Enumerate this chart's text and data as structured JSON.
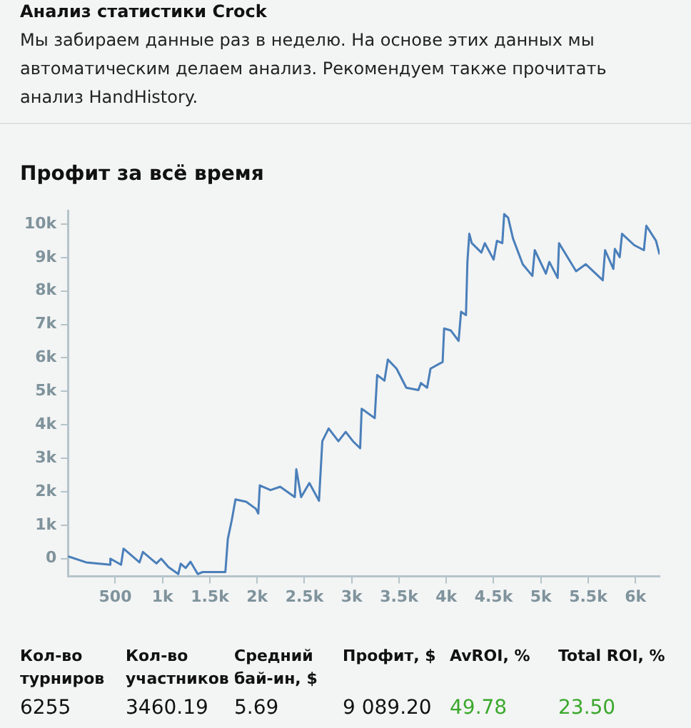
{
  "chart_data": {
    "type": "line",
    "title": "Профит за всё время",
    "annotations": [
      "Анализ статистики Crock",
      "Мы забираем данные раз в неделю. На основе этих данных мы автоматическим делаем анализ. Рекомендуем также прочитать анализ HandHistory.",
      "Кол-во турниров",
      "Кол-во участников",
      "Средний бай-ин, $",
      "Профит, $",
      "AvROI, %",
      "Total ROI, %",
      "6255",
      "3460.19",
      "5.69",
      "9 089.20",
      "49.78",
      "23.50"
    ],
    "x": [
      0,
      192,
      448,
      448,
      561,
      587,
      756,
      792,
      935,
      985,
      1062,
      1166,
      1192,
      1244,
      1295,
      1372,
      1423,
      1664,
      1690,
      1731,
      1771,
      1884,
      1987,
      2012,
      2028,
      2141,
      2244,
      2398,
      2414,
      2465,
      2552,
      2654,
      2689,
      2756,
      2859,
      2936,
      3013,
      3089,
      3105,
      3243,
      3269,
      3346,
      3382,
      3474,
      3577,
      3705,
      3731,
      3797,
      3833,
      3961,
      3977,
      4048,
      4130,
      4156,
      4208,
      4223,
      4243,
      4269,
      4371,
      4407,
      4500,
      4535,
      4592,
      4612,
      4654,
      4705,
      4808,
      4910,
      4935,
      5053,
      5089,
      5177,
      5192,
      5372,
      5474,
      5654,
      5679,
      5766,
      5782,
      5833,
      5858,
      5987,
      6089,
      6115,
      6217,
      6243,
      6255
    ],
    "series": [
      {
        "color": "#4a7fba",
        "values": [
          70,
          -110,
          -180,
          0,
          -180,
          300,
          -110,
          200,
          -140,
          0,
          -250,
          -460,
          -150,
          -280,
          -90,
          -460,
          -400,
          -400,
          590,
          1140,
          1770,
          1700,
          1490,
          1350,
          2190,
          2050,
          2150,
          1840,
          2670,
          1840,
          2260,
          1730,
          3510,
          3890,
          3510,
          3790,
          3510,
          3300,
          4480,
          4200,
          5490,
          5320,
          5950,
          5680,
          5110,
          5040,
          5250,
          5110,
          5680,
          5880,
          6880,
          6820,
          6510,
          7380,
          7280,
          8870,
          9710,
          9430,
          9150,
          9430,
          8940,
          9500,
          9430,
          10300,
          10190,
          9570,
          8800,
          8450,
          9220,
          8520,
          8870,
          8390,
          9430,
          8590,
          8800,
          8320,
          9220,
          8660,
          9260,
          9010,
          9710,
          9370,
          9220,
          9950,
          9500,
          9220,
          9090
        ]
      }
    ],
    "xlim": [
      0,
      6255
    ],
    "ylim": [
      -530,
      10400
    ],
    "xticks": [
      500,
      {
        "value": 1000,
        "label": "1k"
      },
      {
        "value": 1500,
        "label": "1.5k"
      },
      {
        "value": 2000,
        "label": "2k"
      },
      {
        "value": 2500,
        "label": "2.5k"
      },
      {
        "value": 3000,
        "label": "3k"
      },
      {
        "value": 3500,
        "label": "3.5k"
      },
      {
        "value": 4000,
        "label": "4k"
      },
      {
        "value": 4500,
        "label": "4.5k"
      },
      {
        "value": 5000,
        "label": "5k"
      },
      {
        "value": 5500,
        "label": "5.5k"
      },
      {
        "value": 6000,
        "label": "6k"
      }
    ],
    "yticks": [
      0,
      {
        "value": 1000,
        "label": "1k"
      },
      {
        "value": 2000,
        "label": "2k"
      },
      {
        "value": 3000,
        "label": "3k"
      },
      {
        "value": 4000,
        "label": "4k"
      },
      {
        "value": 5000,
        "label": "5k"
      },
      {
        "value": 6000,
        "label": "6k"
      },
      {
        "value": 7000,
        "label": "7k"
      },
      {
        "value": 8000,
        "label": "8k"
      },
      {
        "value": 9000,
        "label": "9k"
      },
      {
        "value": 10000,
        "label": "10k"
      }
    ],
    "grid": false,
    "legend": false,
    "marker": "none",
    "line_style": "solid"
  }
}
